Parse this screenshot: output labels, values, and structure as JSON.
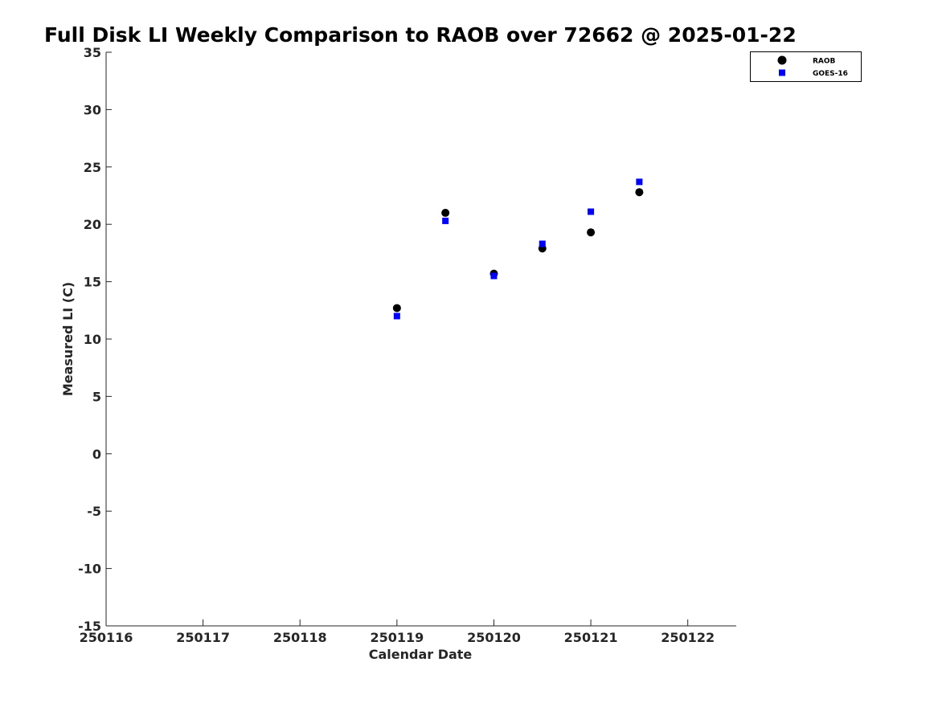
{
  "chart_data": {
    "type": "scatter",
    "title": "Full Disk LI Weekly Comparison to RAOB over 72662 @ 2025-01-22",
    "xlabel": "Calendar Date",
    "ylabel": "Measured LI (C)",
    "xlim": [
      250116,
      250122.5
    ],
    "ylim": [
      -15,
      35
    ],
    "x_ticks": [
      250116,
      250117,
      250118,
      250119,
      250120,
      250121,
      250122
    ],
    "x_tick_labels": [
      "250116",
      "250117",
      "250118",
      "250119",
      "250120",
      "250121",
      "250122"
    ],
    "y_ticks": [
      -15,
      -10,
      -5,
      0,
      5,
      10,
      15,
      20,
      25,
      30,
      35
    ],
    "y_tick_labels": [
      "-15",
      "-10",
      "-5",
      "0",
      "5",
      "10",
      "15",
      "20",
      "25",
      "30",
      "35"
    ],
    "grid": false,
    "legend_position": "top-right",
    "series": [
      {
        "name": "RAOB",
        "marker": "circle",
        "color": "#000000",
        "x": [
          250119,
          250119.5,
          250120,
          250120.5,
          250121,
          250121.5
        ],
        "y": [
          12.7,
          21.0,
          15.7,
          17.9,
          19.3,
          22.8
        ]
      },
      {
        "name": "GOES-16",
        "marker": "square",
        "color": "#0000ff",
        "x": [
          250119,
          250119.5,
          250120,
          250120.5,
          250121,
          250121.5
        ],
        "y": [
          12.0,
          20.3,
          15.5,
          18.3,
          21.1,
          23.7
        ]
      }
    ]
  }
}
